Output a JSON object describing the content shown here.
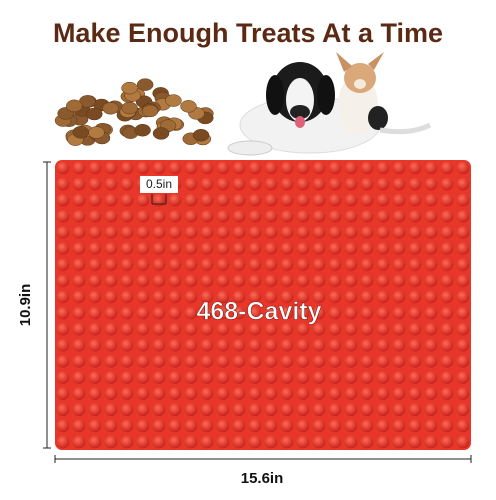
{
  "header": {
    "title": "Make Enough Treats At a Time"
  },
  "mat": {
    "cavity_label": "468-Cavity",
    "cavity_size": "0.5in",
    "height_label": "10.9in",
    "width_label": "15.6in"
  }
}
